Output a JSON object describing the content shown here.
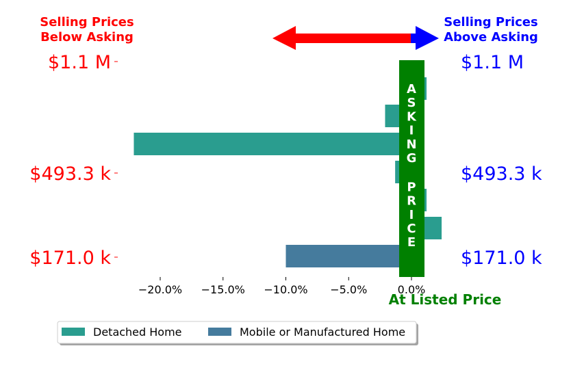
{
  "colors": {
    "below": "#ff0000",
    "above": "#0000ff",
    "asking": "#008000",
    "detached": "#2a9d8f",
    "mobile": "#457b9d"
  },
  "headers": {
    "below": [
      "Selling Prices",
      "Below Asking"
    ],
    "above": [
      "Selling Prices",
      "Above Asking"
    ]
  },
  "asking_bar_text": [
    "A",
    "S",
    "K",
    "I",
    "N",
    "G",
    "",
    "P",
    "R",
    "I",
    "C",
    "E"
  ],
  "at_listed_label": "At Listed Price",
  "chart_data": {
    "type": "bar",
    "orientation": "horizontal",
    "x_ticks": [
      "−20.0%",
      "−15.0%",
      "−10.0%",
      "−5.0%",
      "0.0%"
    ],
    "xlim": [
      -22.5,
      2.5
    ],
    "price_ticks": [
      "$1.1 M",
      "$493.3 k",
      "$171.0 k"
    ],
    "bars": [
      {
        "series": "Detached Home",
        "value": 1.2
      },
      {
        "series": "Detached Home",
        "value": -2.1
      },
      {
        "series": "Detached Home",
        "value": -22.1
      },
      {
        "series": "Detached Home",
        "value": -1.3
      },
      {
        "series": "Detached Home",
        "value": 1.2
      },
      {
        "series": "Detached Home",
        "value": 2.4
      },
      {
        "series": "Mobile or Manufactured Home",
        "value": -10.0
      }
    ],
    "series": [
      {
        "name": "Detached Home"
      },
      {
        "name": "Mobile or Manufactured Home"
      }
    ],
    "legend_position": "bottom-left"
  }
}
